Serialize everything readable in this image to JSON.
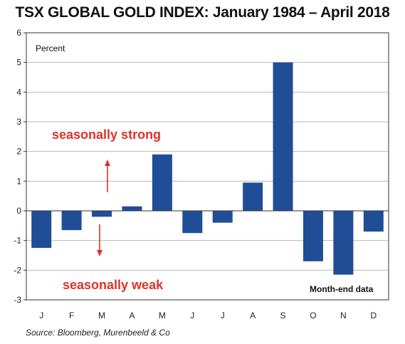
{
  "chart_data": {
    "type": "bar",
    "title": "TSX GLOBAL GOLD INDEX: January 1984 – April 2018",
    "ylabel": "Percent",
    "categories": [
      "J",
      "F",
      "M",
      "A",
      "M",
      "J",
      "J",
      "A",
      "S",
      "O",
      "N",
      "D"
    ],
    "values": [
      -1.25,
      -0.65,
      -0.2,
      0.15,
      1.9,
      -0.75,
      -0.4,
      0.95,
      5.0,
      -1.7,
      -2.15,
      -0.7
    ],
    "ylim": [
      -3,
      6
    ],
    "yticks": [
      -3,
      -2,
      -1,
      0,
      1,
      2,
      3,
      4,
      5,
      6
    ],
    "grid": true,
    "annotations": {
      "strong": "seasonally strong",
      "weak": "seasonally weak",
      "note": "Month-end data"
    },
    "source": "Source: Bloomberg, Murenbeeld & Co"
  },
  "colors": {
    "bar": "#1f4e96",
    "annotation": "#e03127",
    "grid": "#b8b8b8",
    "axis": "#333333"
  }
}
